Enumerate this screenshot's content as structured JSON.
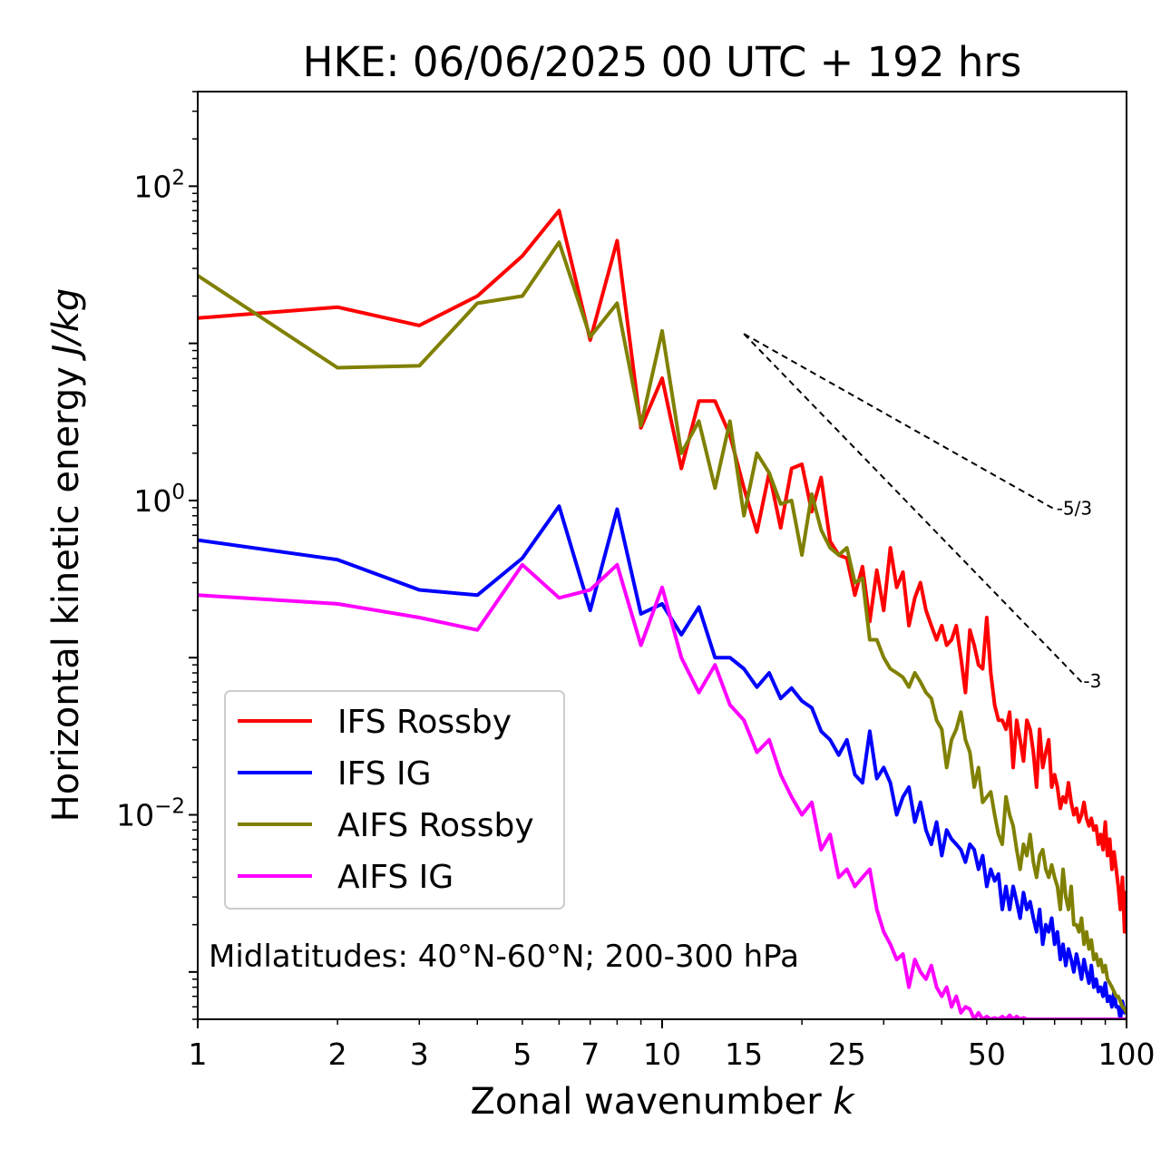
{
  "chart_data": {
    "type": "line",
    "title": "HKE: 06/06/2025 00 UTC + 192 hrs",
    "xlabel": "Zonal wavenumber",
    "xlabel_var": "k",
    "ylabel": "Horizontal kinetic energy",
    "ylabel_unit": "J/kg",
    "x_scale": "log",
    "y_scale": "log",
    "xlim": [
      1,
      100
    ],
    "ylim": [
      0.0005,
      400
    ],
    "x_ticks": [
      {
        "value": 1,
        "label": "1"
      },
      {
        "value": 2,
        "label": "2"
      },
      {
        "value": 3,
        "label": "3"
      },
      {
        "value": 5,
        "label": "5"
      },
      {
        "value": 7,
        "label": "7"
      },
      {
        "value": 10,
        "label": "10"
      },
      {
        "value": 15,
        "label": "15"
      },
      {
        "value": 25,
        "label": "25"
      },
      {
        "value": 50,
        "label": "50"
      },
      {
        "value": 100,
        "label": "100"
      }
    ],
    "y_ticks": [
      {
        "value": 100,
        "base": "10",
        "exp": "2"
      },
      {
        "value": 1,
        "base": "10",
        "exp": "0"
      },
      {
        "value": 0.01,
        "base": "10",
        "exp": "−2"
      }
    ],
    "grid": false,
    "legend_position": "lower-left",
    "annotation": "Midlatitudes: 40°N-60°N; 200-300 hPa",
    "reference_slopes": [
      {
        "label": "-5/3",
        "x": [
          15,
          70
        ],
        "y": [
          11.5,
          0.88
        ]
      },
      {
        "label": "-3",
        "x": [
          15,
          80
        ],
        "y": [
          11.5,
          0.07
        ]
      }
    ],
    "series": [
      {
        "name": "IFS Rossby",
        "color": "#ff0000",
        "x": [
          1,
          2,
          3,
          4,
          5,
          6,
          7,
          8,
          9,
          10,
          11,
          12,
          13,
          14,
          15,
          16,
          17,
          18,
          19,
          20,
          21,
          22,
          23,
          24,
          25,
          26,
          27,
          28,
          29,
          30,
          31,
          32,
          33,
          34,
          35,
          36,
          37,
          38,
          39,
          40,
          41,
          42,
          43,
          44,
          45,
          46,
          47,
          48,
          49,
          50,
          51,
          52,
          53,
          54,
          55,
          56,
          57,
          58,
          59,
          60,
          61,
          62,
          63,
          64,
          65,
          66,
          67,
          68,
          69,
          70,
          71,
          72,
          73,
          74,
          75,
          76,
          77,
          78,
          79,
          80,
          81,
          82,
          83,
          84,
          85,
          86,
          87,
          88,
          89,
          90,
          91,
          92,
          93,
          94,
          95,
          96,
          97,
          98,
          99,
          100
        ],
        "y": [
          14.5,
          17,
          13,
          20,
          36,
          70,
          10.5,
          45,
          2.9,
          6,
          1.6,
          4.3,
          4.3,
          2.6,
          1.2,
          0.63,
          1.5,
          0.67,
          1.6,
          1.7,
          0.85,
          1.4,
          0.55,
          0.45,
          0.43,
          0.25,
          0.38,
          0.17,
          0.36,
          0.2,
          0.5,
          0.28,
          0.35,
          0.16,
          0.24,
          0.3,
          0.2,
          0.16,
          0.13,
          0.16,
          0.12,
          0.13,
          0.16,
          0.1,
          0.06,
          0.15,
          0.12,
          0.09,
          0.085,
          0.18,
          0.08,
          0.05,
          0.04,
          0.04,
          0.035,
          0.045,
          0.02,
          0.04,
          0.03,
          0.022,
          0.04,
          0.035,
          0.025,
          0.015,
          0.035,
          0.02,
          0.025,
          0.03,
          0.015,
          0.018,
          0.015,
          0.011,
          0.013,
          0.012,
          0.016,
          0.012,
          0.01,
          0.011,
          0.009,
          0.01,
          0.012,
          0.0095,
          0.0085,
          0.0095,
          0.008,
          0.0085,
          0.0065,
          0.0075,
          0.006,
          0.009,
          0.0055,
          0.007,
          0.0045,
          0.0058,
          0.0045,
          0.0035,
          0.0025,
          0.004,
          0.0018,
          0.0032
        ]
      },
      {
        "name": "IFS IG",
        "color": "#0000ff",
        "x": [
          1,
          2,
          3,
          4,
          5,
          6,
          7,
          8,
          9,
          10,
          11,
          12,
          13,
          14,
          15,
          16,
          17,
          18,
          19,
          20,
          21,
          22,
          23,
          24,
          25,
          26,
          27,
          28,
          29,
          30,
          31,
          32,
          33,
          34,
          35,
          36,
          37,
          38,
          39,
          40,
          41,
          42,
          43,
          44,
          45,
          46,
          47,
          48,
          49,
          50,
          51,
          52,
          53,
          54,
          55,
          56,
          57,
          58,
          59,
          60,
          61,
          62,
          63,
          64,
          65,
          66,
          67,
          68,
          69,
          70,
          71,
          72,
          73,
          74,
          75,
          76,
          77,
          78,
          79,
          80,
          81,
          82,
          83,
          84,
          85,
          86,
          87,
          88,
          89,
          90,
          91,
          92,
          93,
          94,
          95,
          96,
          97,
          98,
          99,
          100
        ],
        "y": [
          0.56,
          0.42,
          0.27,
          0.25,
          0.43,
          0.92,
          0.2,
          0.88,
          0.19,
          0.22,
          0.14,
          0.21,
          0.1,
          0.1,
          0.085,
          0.065,
          0.08,
          0.055,
          0.064,
          0.053,
          0.048,
          0.034,
          0.03,
          0.024,
          0.03,
          0.018,
          0.016,
          0.034,
          0.017,
          0.02,
          0.016,
          0.01,
          0.013,
          0.015,
          0.009,
          0.012,
          0.008,
          0.0065,
          0.009,
          0.0055,
          0.008,
          0.007,
          0.0065,
          0.006,
          0.005,
          0.0065,
          0.006,
          0.0045,
          0.0055,
          0.0035,
          0.0045,
          0.0038,
          0.0042,
          0.0025,
          0.0035,
          0.0025,
          0.0035,
          0.0028,
          0.0022,
          0.0032,
          0.0025,
          0.0028,
          0.0022,
          0.0018,
          0.0025,
          0.0015,
          0.002,
          0.0018,
          0.0022,
          0.0015,
          0.0018,
          0.0012,
          0.0015,
          0.0011,
          0.0014,
          0.0012,
          0.001,
          0.0013,
          0.0011,
          0.0009,
          0.0012,
          0.001,
          0.00085,
          0.0011,
          0.0008,
          0.0009,
          0.00075,
          0.0008,
          0.0007,
          0.00085,
          0.00065,
          0.0007,
          0.0006,
          0.00075,
          0.0006,
          0.0006,
          0.0005,
          0.00065,
          0.00055,
          0.00058
        ]
      },
      {
        "name": "AIFS Rossby",
        "color": "#808000",
        "x": [
          1,
          2,
          3,
          4,
          5,
          6,
          7,
          8,
          9,
          10,
          11,
          12,
          13,
          14,
          15,
          16,
          17,
          18,
          19,
          20,
          21,
          22,
          23,
          24,
          25,
          26,
          27,
          28,
          29,
          30,
          31,
          32,
          33,
          34,
          35,
          36,
          37,
          38,
          39,
          40,
          41,
          42,
          43,
          44,
          45,
          46,
          47,
          48,
          49,
          50,
          51,
          52,
          53,
          54,
          55,
          56,
          57,
          58,
          59,
          60,
          61,
          62,
          63,
          64,
          65,
          66,
          67,
          68,
          69,
          70,
          71,
          72,
          73,
          74,
          75,
          76,
          77,
          78,
          79,
          80,
          81,
          82,
          83,
          84,
          85,
          86,
          87,
          88,
          89,
          90,
          91,
          92,
          93,
          94,
          95,
          96,
          97,
          98,
          99,
          100
        ],
        "y": [
          27,
          7,
          7.2,
          18,
          20,
          44,
          11,
          18,
          3,
          12,
          2,
          3.2,
          1.2,
          3.2,
          0.8,
          2,
          1.5,
          0.95,
          1,
          0.45,
          1.1,
          0.65,
          0.5,
          0.45,
          0.5,
          0.3,
          0.32,
          0.13,
          0.13,
          0.1,
          0.085,
          0.08,
          0.075,
          0.065,
          0.08,
          0.07,
          0.06,
          0.055,
          0.04,
          0.035,
          0.02,
          0.03,
          0.035,
          0.045,
          0.03,
          0.025,
          0.015,
          0.02,
          0.012,
          0.013,
          0.014,
          0.01,
          0.0075,
          0.0065,
          0.013,
          0.01,
          0.0085,
          0.006,
          0.0045,
          0.0065,
          0.0055,
          0.0075,
          0.005,
          0.004,
          0.0055,
          0.006,
          0.0045,
          0.004,
          0.0048,
          0.004,
          0.0035,
          0.0025,
          0.0045,
          0.003,
          0.0025,
          0.0035,
          0.002,
          0.002,
          0.0018,
          0.0022,
          0.0015,
          0.0018,
          0.0014,
          0.0016,
          0.0012,
          0.0013,
          0.0011,
          0.0012,
          0.001,
          0.0011,
          0.0009,
          0.00085,
          0.0008,
          0.00075,
          0.0007,
          0.0007,
          0.00065,
          0.0006,
          0.00058,
          0.00055
        ]
      },
      {
        "name": "AIFS IG",
        "color": "#ff00ff",
        "x": [
          1,
          2,
          3,
          4,
          5,
          6,
          7,
          8,
          9,
          10,
          11,
          12,
          13,
          14,
          15,
          16,
          17,
          18,
          19,
          20,
          21,
          22,
          23,
          24,
          25,
          26,
          27,
          28,
          29,
          30,
          31,
          32,
          33,
          34,
          35,
          36,
          37,
          38,
          39,
          40,
          41,
          42,
          43,
          44,
          45,
          46,
          47,
          48,
          49,
          50,
          51,
          52,
          53,
          54,
          55,
          56,
          57,
          58,
          59,
          60,
          61,
          62,
          63,
          64,
          65,
          66,
          67,
          68,
          69,
          70,
          71,
          72,
          73,
          74,
          75,
          76,
          77,
          78,
          79,
          80,
          81,
          82,
          83,
          84,
          85,
          86,
          87,
          88,
          89,
          90,
          91,
          92,
          93,
          94,
          95,
          96,
          97,
          98,
          99,
          100
        ],
        "y": [
          0.25,
          0.22,
          0.18,
          0.15,
          0.39,
          0.24,
          0.27,
          0.39,
          0.12,
          0.28,
          0.1,
          0.06,
          0.09,
          0.05,
          0.04,
          0.025,
          0.03,
          0.018,
          0.013,
          0.01,
          0.012,
          0.006,
          0.0075,
          0.004,
          0.0045,
          0.0035,
          0.004,
          0.0045,
          0.0025,
          0.0018,
          0.0015,
          0.0012,
          0.0013,
          0.0008,
          0.0012,
          0.001,
          0.0009,
          0.0011,
          0.0008,
          0.0007,
          0.0008,
          0.0006,
          0.0007,
          0.00055,
          0.0006,
          0.00058,
          0.0005,
          0.00055,
          0.0005,
          0.00052,
          0.0005,
          0.00051,
          0.0005,
          0.00052,
          0.0005,
          0.00053,
          0.0005,
          0.00052,
          0.0005,
          0.00051,
          0.0005,
          0.0005,
          0.0005,
          0.0005,
          0.0005,
          0.0005,
          0.0005,
          0.0005,
          0.0005,
          0.0005,
          0.0005,
          0.0005,
          0.0005,
          0.0005,
          0.0005,
          0.0005,
          0.0005,
          0.0005,
          0.0005,
          0.0005,
          0.0005,
          0.0005,
          0.0005,
          0.0005,
          0.0005,
          0.0005,
          0.0005,
          0.0005,
          0.0005,
          0.0005,
          0.0005,
          0.0005,
          0.0005,
          0.0005,
          0.0005,
          0.0005,
          0.0005,
          0.0005,
          0.0005,
          0.0005
        ]
      }
    ]
  }
}
